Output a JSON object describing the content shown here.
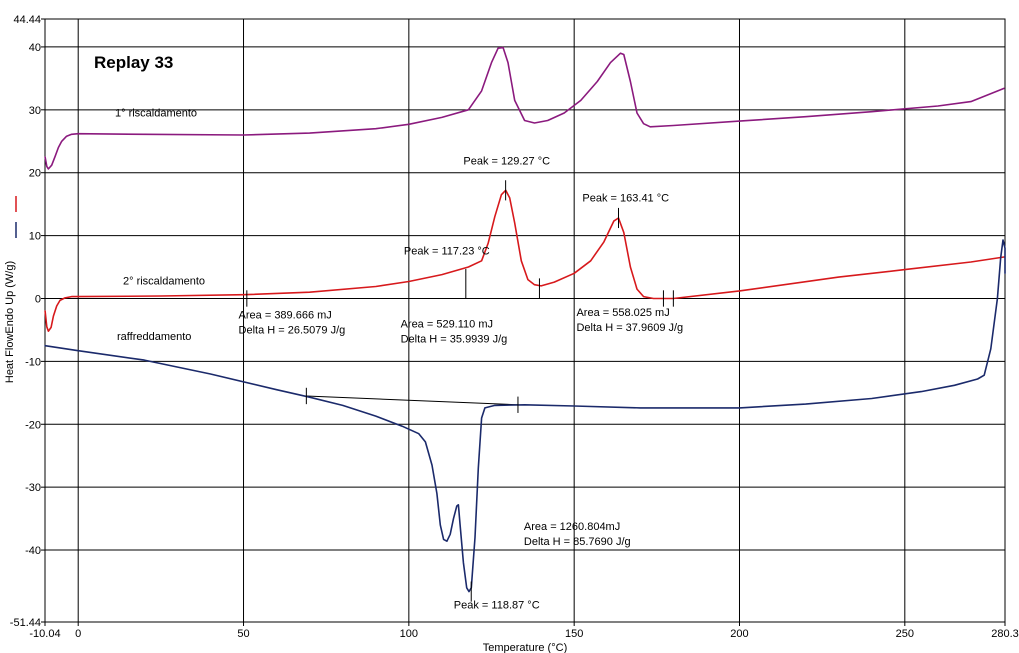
{
  "chart_data": {
    "type": "line",
    "title": "Replay 33",
    "xlabel": "Temperature (°C)",
    "ylabel": "Heat FlowEndo Up (W/g)",
    "xlim": [
      -10.04,
      280.3
    ],
    "ylim": [
      -51.44,
      44.44
    ],
    "grid": true,
    "x_ticks": [
      {
        "value": -10.04,
        "label": "-10.04"
      },
      {
        "value": 0,
        "label": "0"
      },
      {
        "value": 50,
        "label": "50"
      },
      {
        "value": 100,
        "label": "100"
      },
      {
        "value": 150,
        "label": "150"
      },
      {
        "value": 200,
        "label": "200"
      },
      {
        "value": 250,
        "label": "250"
      },
      {
        "value": 280.3,
        "label": "280.3"
      }
    ],
    "y_ticks": [
      {
        "value": 44.44,
        "label": "44.44"
      },
      {
        "value": 40,
        "label": "40"
      },
      {
        "value": 30,
        "label": "30"
      },
      {
        "value": 20,
        "label": "20"
      },
      {
        "value": 10,
        "label": "10"
      },
      {
        "value": 0,
        "label": "0"
      },
      {
        "value": -10,
        "label": "-10"
      },
      {
        "value": -20,
        "label": "-20"
      },
      {
        "value": -30,
        "label": "-30"
      },
      {
        "value": -40,
        "label": "-40"
      },
      {
        "value": -51.44,
        "label": "-51.44"
      }
    ],
    "legend_swatches": [
      {
        "color": "#d7191c"
      },
      {
        "color": "#1b2a6b"
      }
    ],
    "series": [
      {
        "name": "1° riscaldamento",
        "color": "#8b1a7e",
        "points": [
          [
            -10.0,
            22.5
          ],
          [
            -9.5,
            21.0
          ],
          [
            -9.0,
            20.6
          ],
          [
            -8.0,
            21.2
          ],
          [
            -7.0,
            22.6
          ],
          [
            -6.0,
            24.0
          ],
          [
            -5.0,
            25.0
          ],
          [
            -3.5,
            25.8
          ],
          [
            -2.0,
            26.1
          ],
          [
            0,
            26.2
          ],
          [
            20,
            26.1
          ],
          [
            50,
            26.0
          ],
          [
            70,
            26.3
          ],
          [
            90,
            27.0
          ],
          [
            100,
            27.7
          ],
          [
            110,
            28.8
          ],
          [
            118,
            30.0
          ],
          [
            122,
            33.0
          ],
          [
            125,
            37.5
          ],
          [
            127,
            39.8
          ],
          [
            128.5,
            39.9
          ],
          [
            130,
            37.5
          ],
          [
            132,
            31.5
          ],
          [
            135,
            28.3
          ],
          [
            138,
            27.9
          ],
          [
            142,
            28.3
          ],
          [
            147,
            29.5
          ],
          [
            152,
            31.5
          ],
          [
            157,
            34.5
          ],
          [
            161,
            37.5
          ],
          [
            164,
            39.0
          ],
          [
            165,
            38.8
          ],
          [
            167,
            34.5
          ],
          [
            169,
            29.5
          ],
          [
            171,
            27.8
          ],
          [
            173,
            27.3
          ],
          [
            180,
            27.5
          ],
          [
            200,
            28.2
          ],
          [
            220,
            28.9
          ],
          [
            240,
            29.7
          ],
          [
            260,
            30.6
          ],
          [
            270,
            31.3
          ],
          [
            280,
            33.4
          ]
        ]
      },
      {
        "name": "2° riscaldamento",
        "color": "#d7191c",
        "points": [
          [
            -10.0,
            -2.0
          ],
          [
            -9.5,
            -4.5
          ],
          [
            -9.0,
            -5.2
          ],
          [
            -8.2,
            -4.6
          ],
          [
            -7.5,
            -2.8
          ],
          [
            -6.5,
            -1.2
          ],
          [
            -5.5,
            -0.3
          ],
          [
            -4.0,
            0.1
          ],
          [
            -2.0,
            0.3
          ],
          [
            0,
            0.3
          ],
          [
            25,
            0.4
          ],
          [
            50,
            0.6
          ],
          [
            70,
            1.0
          ],
          [
            90,
            1.9
          ],
          [
            100,
            2.7
          ],
          [
            110,
            3.8
          ],
          [
            118,
            5.0
          ],
          [
            122,
            6.0
          ],
          [
            124,
            8.8
          ],
          [
            126,
            13.0
          ],
          [
            128,
            16.5
          ],
          [
            129.3,
            17.2
          ],
          [
            130.5,
            16.0
          ],
          [
            132,
            12.0
          ],
          [
            134,
            6.0
          ],
          [
            136,
            3.0
          ],
          [
            138,
            2.2
          ],
          [
            140,
            2.0
          ],
          [
            144,
            2.6
          ],
          [
            150,
            4.0
          ],
          [
            155,
            6.0
          ],
          [
            159,
            9.0
          ],
          [
            162,
            12.3
          ],
          [
            163.4,
            12.8
          ],
          [
            165,
            10.5
          ],
          [
            167,
            5.0
          ],
          [
            169,
            1.5
          ],
          [
            171,
            0.3
          ],
          [
            174,
            0.0
          ],
          [
            180,
            0.0
          ],
          [
            200,
            1.2
          ],
          [
            230,
            3.4
          ],
          [
            250,
            4.6
          ],
          [
            270,
            5.8
          ],
          [
            280,
            6.6
          ]
        ]
      },
      {
        "name": "raffreddamento",
        "color": "#1b2a6b",
        "points": [
          [
            -10.0,
            -7.5
          ],
          [
            0,
            -8.3
          ],
          [
            20,
            -9.8
          ],
          [
            40,
            -12.0
          ],
          [
            60,
            -14.5
          ],
          [
            70,
            -15.7
          ],
          [
            80,
            -17.0
          ],
          [
            90,
            -18.7
          ],
          [
            98,
            -20.3
          ],
          [
            103,
            -21.5
          ],
          [
            105,
            -22.8
          ],
          [
            107,
            -26.5
          ],
          [
            108.5,
            -31.0
          ],
          [
            109.5,
            -36.0
          ],
          [
            110.5,
            -38.3
          ],
          [
            111.5,
            -38.6
          ],
          [
            112.5,
            -37.5
          ],
          [
            113.5,
            -35.0
          ],
          [
            114.5,
            -33.0
          ],
          [
            115.0,
            -32.8
          ],
          [
            115.5,
            -36.0
          ],
          [
            116.5,
            -42.0
          ],
          [
            117.5,
            -46.0
          ],
          [
            118.2,
            -46.6
          ],
          [
            118.9,
            -46.0
          ],
          [
            120,
            -38.0
          ],
          [
            121,
            -27.0
          ],
          [
            122,
            -19.0
          ],
          [
            123,
            -17.4
          ],
          [
            126,
            -17.0
          ],
          [
            135,
            -16.9
          ],
          [
            150,
            -17.1
          ],
          [
            170,
            -17.4
          ],
          [
            200,
            -17.4
          ],
          [
            220,
            -16.8
          ],
          [
            240,
            -15.9
          ],
          [
            255,
            -14.8
          ],
          [
            265,
            -13.8
          ],
          [
            272,
            -12.8
          ],
          [
            274,
            -12.2
          ],
          [
            276,
            -8.0
          ],
          [
            278,
            0.0
          ],
          [
            279,
            6.5
          ],
          [
            279.7,
            9.3
          ],
          [
            280.3,
            8.0
          ],
          [
            280.3,
            4.0
          ]
        ]
      }
    ],
    "baselines": [
      {
        "color": "#000000",
        "points": [
          [
            51,
            0.0
          ],
          [
            180,
            0.0
          ]
        ]
      },
      {
        "color": "#000000",
        "points": [
          [
            69,
            -15.5
          ],
          [
            133,
            -16.9
          ]
        ]
      }
    ],
    "markers": [
      {
        "x": 51,
        "y": 0.0,
        "half": 1.3
      },
      {
        "x": 117.23,
        "y": 0.0,
        "half": 4.7,
        "from": 0.0,
        "to": 4.7
      },
      {
        "x": 139.5,
        "y": 0.0,
        "half": 3.2,
        "from": 0.0,
        "to": 3.2
      },
      {
        "x": 177,
        "y": 0.0,
        "half": 1.3
      },
      {
        "x": 180,
        "y": 0.0,
        "half": 1.3
      },
      {
        "x": 129.27,
        "y": 17.2,
        "half": 1.6
      },
      {
        "x": 163.41,
        "y": 12.8,
        "half": 1.6
      },
      {
        "x": 69,
        "y": -15.5,
        "half": 1.3
      },
      {
        "x": 133,
        "y": -16.9,
        "half": 1.3
      },
      {
        "x": 118.87,
        "y": -46.6,
        "half": 1.6
      }
    ],
    "annotations": [
      {
        "text": "1° riscaldamento",
        "x": -10.04,
        "y": 28.9,
        "dx": 70
      },
      {
        "text": "2° riscaldamento",
        "x": -10.04,
        "y": 2.2,
        "dx": 78
      },
      {
        "text": "raffreddamento",
        "x": -10.04,
        "y": -6.6,
        "dx": 72
      },
      {
        "text": "Peak = 129.27 °C",
        "x": 116.5,
        "y": 21.3
      },
      {
        "text": "Peak = 117.23 °C",
        "x": 98.5,
        "y": 7.0
      },
      {
        "text": "Peak = 163.41 °C",
        "x": 152.5,
        "y": 15.4
      },
      {
        "text": "Area = 389.666 mJ",
        "x": 48.5,
        "y": -3.2
      },
      {
        "text": "Delta H = 26.5079 J/g",
        "x": 48.5,
        "y": -5.6
      },
      {
        "text": "Area = 529.110 mJ",
        "x": 97.5,
        "y": -4.6
      },
      {
        "text": "Delta H = 35.9939 J/g",
        "x": 97.5,
        "y": -7.0
      },
      {
        "text": "Area = 558.025 mJ",
        "x": 150.7,
        "y": -2.8
      },
      {
        "text": "Delta H = 37.9609 J/g",
        "x": 150.7,
        "y": -5.2
      },
      {
        "text": "Area = 1260.804mJ",
        "x": 134.8,
        "y": -36.8
      },
      {
        "text": "Delta H = 85.7690 J/g",
        "x": 134.8,
        "y": -39.2
      },
      {
        "text": "Peak = 118.87 °C",
        "x": 113.6,
        "y": -49.3
      }
    ]
  }
}
